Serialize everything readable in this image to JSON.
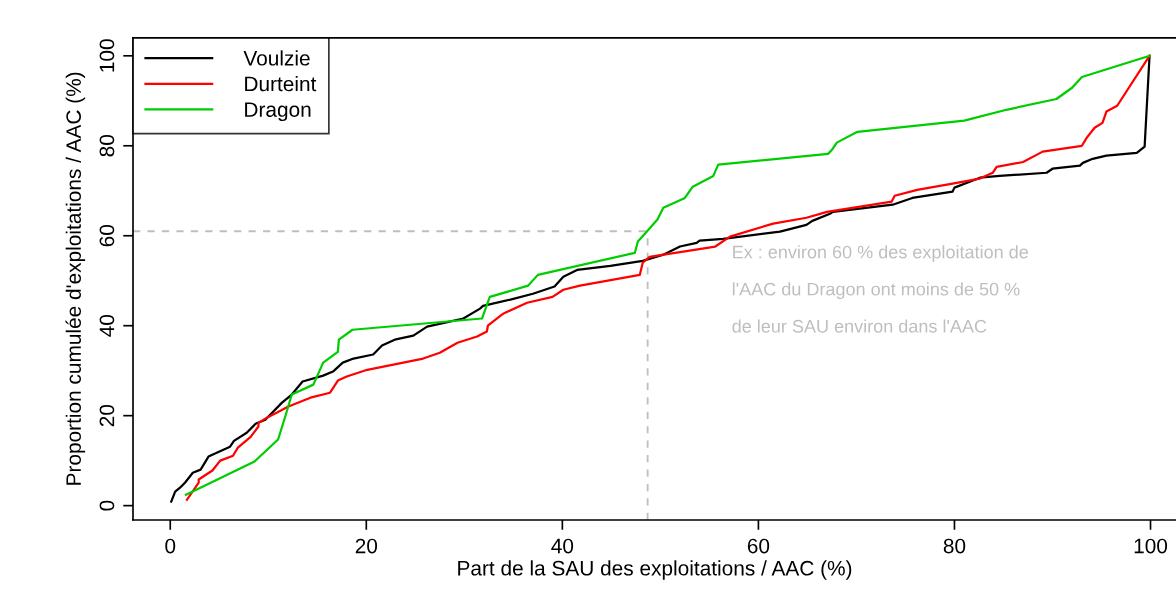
{
  "chart_data": {
    "type": "line",
    "xlabel": "Part de la SAU des exploitations / AAC (%)",
    "ylabel": "Proportion cumulée d'exploitations / AAC (%)",
    "xlim": [
      -3.8,
      102.6
    ],
    "ylim": [
      -3.2,
      104
    ],
    "xticks": [
      0,
      20,
      40,
      60,
      80,
      100
    ],
    "yticks": [
      0,
      20,
      40,
      60,
      80,
      100
    ],
    "grid": false,
    "legend": "top left",
    "series": [
      {
        "name": "Voulzie",
        "color": "#000000",
        "x": [
          0.1,
          0.5,
          1.0,
          1.5,
          2.3,
          3.1,
          3.9,
          4.8,
          6.1,
          6.5,
          7.8,
          8.7,
          9.7,
          11.4,
          12.4,
          13.5,
          15.6,
          16.6,
          17.6,
          18.7,
          20.7,
          21.6,
          22.9,
          24.8,
          26.2,
          28.5,
          29.9,
          31.6,
          31.9,
          34.7,
          37.0,
          39.2,
          40.1,
          41.5,
          44.9,
          48.2,
          50.3,
          52.0,
          53.7,
          54.0,
          56.4,
          62.2,
          64.9,
          65.5,
          67.3,
          67.6,
          73.7,
          75.7,
          79.8,
          80.0,
          82.6,
          84.6,
          89.4,
          90.0,
          92.8,
          93.1,
          94.1,
          95.5,
          98.6,
          99.4,
          99.9
        ],
        "values": [
          0.9,
          3.1,
          4.0,
          5.1,
          7.3,
          8.0,
          10.9,
          11.8,
          13.1,
          14.4,
          16.2,
          18.2,
          19.1,
          22.9,
          24.7,
          27.6,
          28.9,
          29.8,
          31.8,
          32.7,
          33.6,
          35.6,
          36.9,
          37.8,
          39.8,
          40.9,
          41.6,
          43.8,
          44.4,
          45.8,
          47.1,
          48.7,
          50.9,
          52.4,
          53.3,
          54.4,
          55.8,
          57.6,
          58.4,
          58.9,
          59.3,
          60.9,
          62.4,
          63.3,
          64.9,
          65.3,
          66.9,
          68.4,
          69.8,
          70.7,
          72.9,
          73.3,
          74.0,
          74.9,
          75.6,
          76.2,
          77.1,
          77.8,
          78.4,
          79.8,
          100
        ]
      },
      {
        "name": "Durteint",
        "color": "#ff0000",
        "x": [
          1.7,
          2.9,
          2.9,
          4.3,
          5.1,
          6.4,
          6.9,
          8.2,
          9.0,
          9.0,
          9.9,
          10.9,
          12.0,
          14.3,
          16.3,
          17.1,
          18.0,
          20.1,
          25.8,
          27.5,
          29.3,
          31.3,
          32.3,
          32.4,
          33.8,
          34.0,
          36.4,
          39.0,
          40.1,
          41.8,
          47.9,
          48.2,
          48.9,
          55.6,
          57.1,
          61.5,
          64.9,
          67.0,
          73.6,
          73.9,
          76.2,
          79.8,
          82.6,
          83.9,
          84.3,
          87.0,
          89.0,
          93.0,
          93.5,
          94.3,
          95.1,
          95.5,
          96.6,
          99.9
        ],
        "values": [
          1.3,
          5.1,
          5.8,
          7.8,
          10.0,
          11.1,
          12.9,
          15.3,
          17.6,
          18.4,
          19.6,
          20.7,
          22.0,
          24.0,
          25.1,
          27.8,
          28.7,
          30.2,
          32.7,
          34.0,
          36.2,
          37.6,
          38.7,
          40.0,
          42.4,
          42.7,
          45.1,
          46.4,
          48.0,
          48.9,
          51.3,
          54.0,
          55.3,
          57.6,
          59.8,
          62.7,
          64.0,
          65.3,
          67.6,
          68.9,
          70.2,
          71.6,
          72.7,
          74.0,
          75.3,
          76.4,
          78.7,
          80.0,
          81.8,
          84.0,
          85.1,
          87.6,
          88.9,
          100
        ]
      },
      {
        "name": "Dragon",
        "color": "#00cd00",
        "x": [
          1.6,
          8.6,
          11.0,
          11.7,
          12.4,
          14.6,
          15.6,
          17.1,
          17.2,
          18.6,
          31.8,
          32.6,
          36.5,
          37.5,
          47.4,
          47.7,
          48.6,
          49.7,
          50.3,
          52.5,
          53.3,
          55.4,
          55.9,
          67.1,
          67.5,
          68.0,
          70.1,
          81.0,
          85.3,
          90.4,
          92.0,
          93.0,
          99.9
        ],
        "values": [
          2.4,
          9.8,
          14.7,
          19.6,
          24.7,
          26.9,
          31.8,
          34.2,
          36.9,
          39.1,
          41.6,
          46.4,
          48.9,
          51.3,
          56.2,
          58.7,
          60.9,
          63.6,
          66.2,
          68.4,
          70.9,
          73.3,
          75.8,
          78.2,
          79.1,
          80.7,
          83.1,
          85.6,
          88.0,
          90.4,
          92.9,
          95.3,
          100
        ]
      }
    ],
    "ref_lines": [
      {
        "axis": "y",
        "value": 61,
        "color": "#bebebe",
        "line_style": "dashed"
      },
      {
        "axis": "x",
        "value": 48.7,
        "color": "#bebebe",
        "line_style": "dashed"
      }
    ],
    "annotations": [
      "Ex : environ 60 % des exploitation de\nl'AAC du Dragon ont moins de 50 %\nde leur SAU environ dans l'AAC"
    ]
  }
}
